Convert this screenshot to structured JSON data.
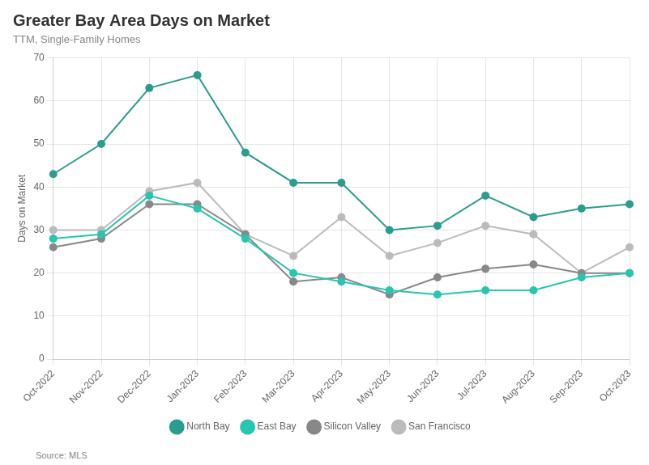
{
  "chart_data": {
    "type": "line",
    "title": "Greater Bay Area Days on Market",
    "subtitle": "TTM, Single-Family Homes",
    "annotations": [
      "Source: MLS"
    ],
    "ylabel": "Days on Market",
    "categories": [
      "Oct-2022",
      "Nov-2022",
      "Dec-2022",
      "Jan-2023",
      "Feb-2023",
      "Mar-2023",
      "Apr-2023",
      "May-2023",
      "Jun-2023",
      "Jul-2023",
      "Aug-2023",
      "Sep-2023",
      "Oct-2023"
    ],
    "series": [
      {
        "name": "North Bay",
        "color": "#2a9d8f",
        "marker": "circle",
        "values": [
          43,
          50,
          63,
          66,
          48,
          41,
          41,
          30,
          31,
          38,
          33,
          35,
          36
        ]
      },
      {
        "name": "East Bay",
        "color": "#26c6b0",
        "marker": "circle",
        "values": [
          28,
          29,
          38,
          35,
          28,
          20,
          18,
          16,
          15,
          16,
          16,
          19,
          20
        ]
      },
      {
        "name": "Silicon Valley",
        "color": "#888888",
        "marker": "circle",
        "values": [
          26,
          28,
          36,
          36,
          29,
          18,
          19,
          15,
          19,
          21,
          22,
          20,
          20
        ]
      },
      {
        "name": "San Francisco",
        "color": "#bbbbbb",
        "marker": "circle",
        "values": [
          30,
          30,
          39,
          41,
          29,
          24,
          33,
          24,
          27,
          31,
          29,
          20,
          26
        ]
      }
    ],
    "ylim": [
      0,
      70
    ],
    "yticks": [
      0,
      10,
      20,
      30,
      40,
      50,
      60,
      70
    ],
    "grid": true,
    "legend": "bottom"
  }
}
